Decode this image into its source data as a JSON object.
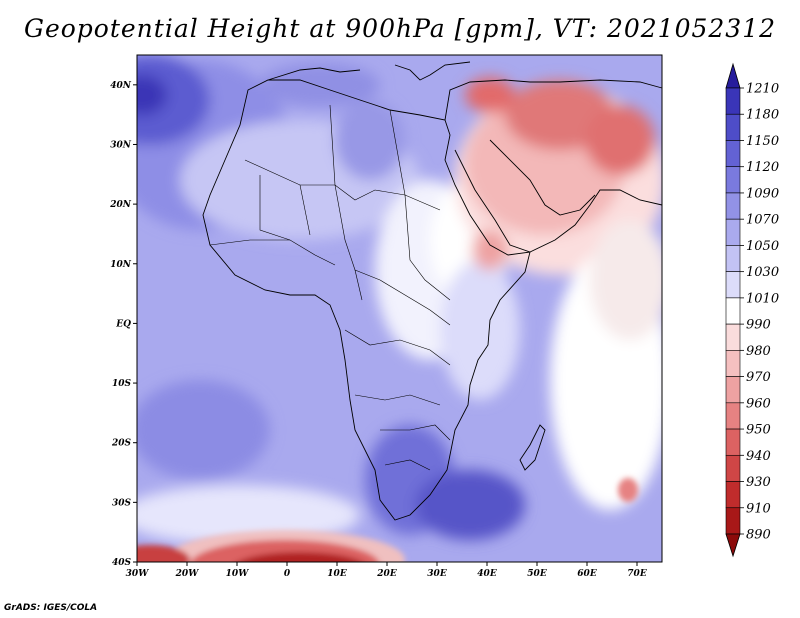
{
  "title": "Geopotential Height at 900hPa [gpm], VT: 2021052312",
  "credit": "GrADS: IGES/COLA",
  "map": {
    "lon_range": [
      -30,
      75
    ],
    "lat_range": [
      -40,
      45
    ],
    "lon_ticks": [
      "30W",
      "20W",
      "10W",
      "0",
      "10E",
      "20E",
      "30E",
      "40E",
      "50E",
      "60E",
      "70E"
    ],
    "lat_ticks": [
      "40N",
      "30N",
      "20N",
      "10N",
      "EQ",
      "10S",
      "20S",
      "30S",
      "40S"
    ]
  },
  "colorbar": {
    "labels": [
      "1210",
      "1180",
      "1150",
      "1120",
      "1090",
      "1070",
      "1050",
      "1030",
      "1010",
      "990",
      "980",
      "970",
      "960",
      "950",
      "940",
      "930",
      "910",
      "890"
    ],
    "colors": [
      "#261c9c",
      "#3a35b8",
      "#4e4dc8",
      "#6362d4",
      "#7a7ade",
      "#9292e6",
      "#aaaaee",
      "#c3c3f4",
      "#dcdcfa",
      "#ffffff",
      "#fadcdc",
      "#f5c0c0",
      "#eea2a2",
      "#e68282",
      "#dc6262",
      "#cf4646",
      "#c02c2c",
      "#a81818",
      "#8c0a0a"
    ]
  }
}
